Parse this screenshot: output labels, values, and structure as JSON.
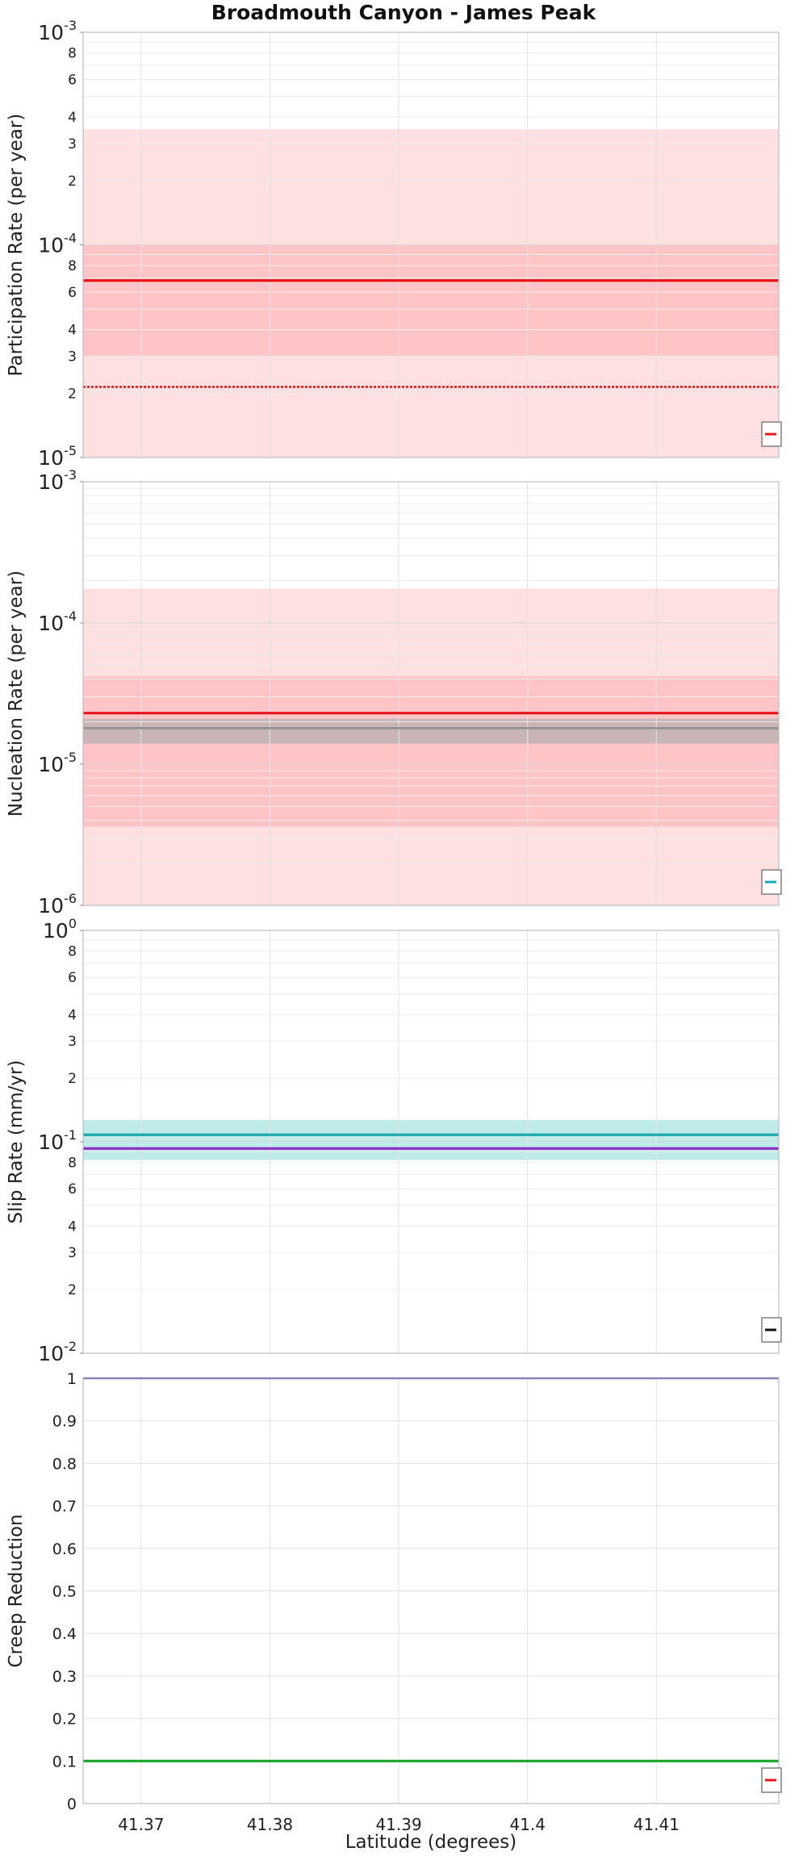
{
  "chart_data": {
    "type": "line",
    "title": "Broadmouth Canyon - James Peak",
    "xlabel": "Latitude (degrees)",
    "xlim": [
      41.3655,
      41.4195
    ],
    "xticks": [
      41.37,
      41.38,
      41.39,
      41.4,
      41.41
    ],
    "xtick_labels": [
      "41.37",
      "41.38",
      "41.39",
      "41.4",
      "41.41"
    ],
    "panels": [
      {
        "id": "participation",
        "ylabel": "Participation Rate (per year)",
        "yscale": "log",
        "ylim": [
          1e-05,
          0.001
        ],
        "major_ticks": [
          {
            "v": 1e-05,
            "base": "10",
            "exp": "-5"
          },
          {
            "v": 0.0001,
            "base": "10",
            "exp": "-4"
          },
          {
            "v": 0.001,
            "base": "10",
            "exp": "-3"
          }
        ],
        "minor_labeled": [
          2,
          3,
          4,
          6,
          8
        ],
        "bands": [
          {
            "lo": 1e-05,
            "hi": 0.00035,
            "color": "#ffe0e0"
          },
          {
            "lo": 3e-05,
            "hi": 0.0001,
            "color": "#ffc4c6"
          }
        ],
        "lines": [
          {
            "y": 6.8e-05,
            "color": "#e8151a",
            "width": 3.2,
            "dash": ""
          },
          {
            "y": 2.15e-05,
            "color": "#e8151a",
            "width": 2.6,
            "dash": "3,2"
          }
        ],
        "legend_swatch": "#e8151a"
      },
      {
        "id": "nucleation",
        "ylabel": "Nucleation Rate (per year)",
        "yscale": "log",
        "ylim": [
          1e-06,
          0.001
        ],
        "major_ticks": [
          {
            "v": 1e-06,
            "base": "10",
            "exp": "-6"
          },
          {
            "v": 1e-05,
            "base": "10",
            "exp": "-5"
          },
          {
            "v": 0.0001,
            "base": "10",
            "exp": "-4"
          },
          {
            "v": 0.001,
            "base": "10",
            "exp": "-3"
          }
        ],
        "minor_labeled": [],
        "bands": [
          {
            "lo": 1e-06,
            "hi": 0.000175,
            "color": "#ffe0e0"
          },
          {
            "lo": 3.6e-06,
            "hi": 4.2e-05,
            "color": "#ffc4c6"
          },
          {
            "lo": 1.4e-05,
            "hi": 2.1e-05,
            "color": "#c9b4b6"
          }
        ],
        "lines": [
          {
            "y": 2.3e-05,
            "color": "#e8151a",
            "width": 3.2,
            "dash": ""
          },
          {
            "y": 1.8e-05,
            "color": "#8f8f8f",
            "width": 2.6,
            "dash": ""
          }
        ],
        "legend_swatch": "#1aaeb3"
      },
      {
        "id": "slip",
        "ylabel": "Slip Rate (mm/yr)",
        "yscale": "log",
        "ylim": [
          0.01,
          1
        ],
        "major_ticks": [
          {
            "v": 0.01,
            "base": "10",
            "exp": "-2"
          },
          {
            "v": 0.1,
            "base": "10",
            "exp": "-1"
          },
          {
            "v": 1,
            "base": "10",
            "exp": "0"
          }
        ],
        "minor_labeled": [
          2,
          3,
          4,
          6,
          8
        ],
        "bands": [
          {
            "lo": 0.082,
            "hi": 0.127,
            "color": "#bfeaea"
          }
        ],
        "lines": [
          {
            "y": 0.108,
            "color": "#1aa7ad",
            "width": 3.2,
            "dash": ""
          },
          {
            "y": 0.093,
            "color": "#8e2fc8",
            "width": 3.2,
            "dash": ""
          }
        ],
        "legend_swatch": "#111111"
      },
      {
        "id": "creep",
        "ylabel": "Creep Reduction",
        "yscale": "linear",
        "ylim": [
          0,
          1
        ],
        "linear_ticks": [
          {
            "v": 0,
            "label": "0"
          },
          {
            "v": 0.1,
            "label": "0.1"
          },
          {
            "v": 0.2,
            "label": "0.2"
          },
          {
            "v": 0.3,
            "label": "0.3"
          },
          {
            "v": 0.4,
            "label": "0.4"
          },
          {
            "v": 0.5,
            "label": "0.5"
          },
          {
            "v": 0.6,
            "label": "0.6"
          },
          {
            "v": 0.7,
            "label": "0.7"
          },
          {
            "v": 0.8,
            "label": "0.8"
          },
          {
            "v": 0.9,
            "label": "0.9"
          },
          {
            "v": 1,
            "label": "1"
          }
        ],
        "bands": [],
        "lines": [
          {
            "y": 1.0,
            "color": "#2b2f9a",
            "width": 2.2,
            "dash": ""
          },
          {
            "y": 0.1,
            "color": "#17a52b",
            "width": 3.2,
            "dash": ""
          }
        ],
        "legend_swatch": "#e8151a"
      }
    ]
  }
}
